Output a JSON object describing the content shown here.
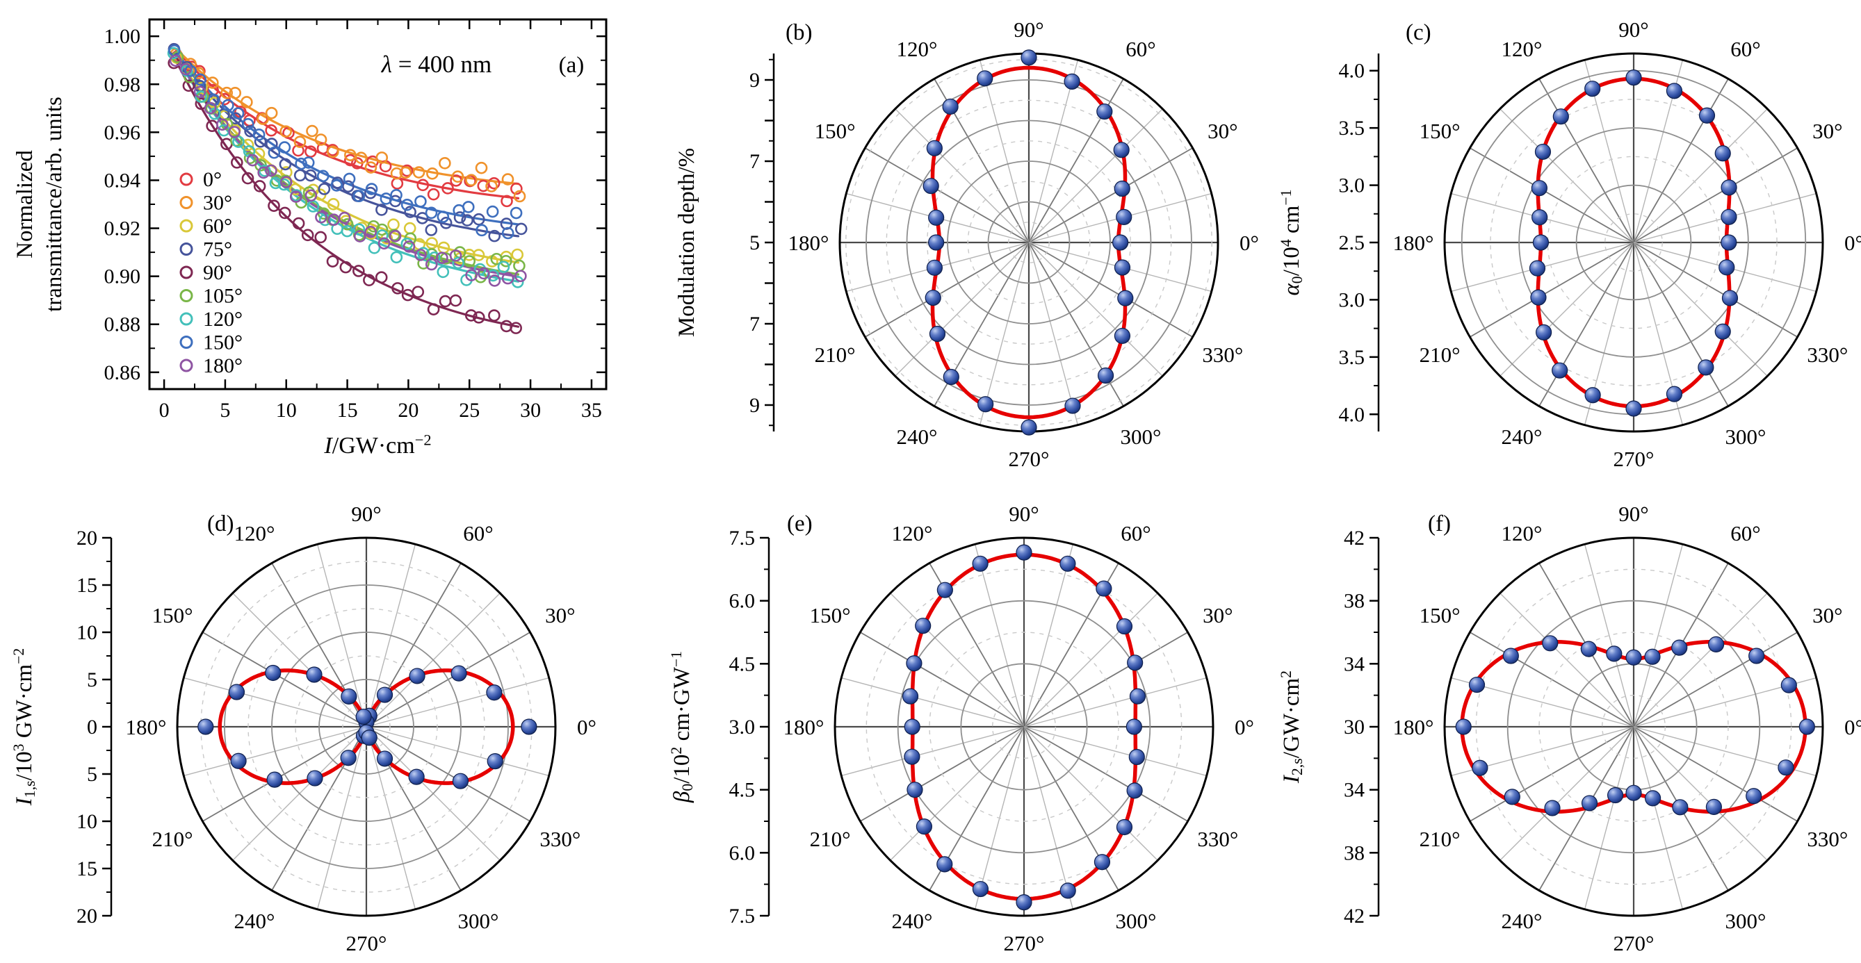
{
  "colors": {
    "fit_red": "#e60000",
    "point_blue": "#2c4ba0",
    "outer_circle": "#000000",
    "ring_major": "#8f8f8f",
    "ring_minor": "#c9c9c9",
    "spoke_cross": "#4a4a4a",
    "spoke_major": "#787878",
    "spoke_minor": "#b5b5b5",
    "axis_black": "#000000"
  },
  "common": {
    "angle_labels": [
      "0°",
      "30°",
      "60°",
      "90°",
      "120°",
      "150°",
      "180°",
      "210°",
      "240°",
      "270°",
      "300°",
      "330°"
    ],
    "spoke_step_deg": 15
  },
  "chart_data": [
    {
      "type": "line+scatter",
      "id": "a",
      "letter": "(a)",
      "annotation": [
        {
          "t": "λ",
          "i": true
        },
        {
          "t": " = 400 nm"
        }
      ],
      "xlabel": [
        {
          "t": "I",
          "i": true
        },
        {
          "t": "/GW·cm"
        },
        {
          "t": "−2",
          "v": "sup"
        }
      ],
      "ylabel_lines": [
        "Normalized",
        "transmittance/arb. units"
      ],
      "xlim": [
        -1.2,
        36.2
      ],
      "ylim": [
        0.853,
        1.007
      ],
      "xticks": [
        0,
        5,
        10,
        15,
        20,
        25,
        30,
        35
      ],
      "xticks_minor": [
        2.5,
        7.5,
        12.5,
        17.5,
        22.5,
        27.5,
        32.5
      ],
      "yticks": [
        0.86,
        0.88,
        0.9,
        0.92,
        0.94,
        0.96,
        0.98,
        1.0
      ],
      "yticks_minor": [
        0.87,
        0.89,
        0.91,
        0.93,
        0.95,
        0.97,
        0.99
      ],
      "x_samples": [
        1,
        3,
        5,
        7,
        9,
        11,
        13,
        15,
        17,
        19,
        21,
        23,
        25,
        27,
        29
      ],
      "series": [
        {
          "label": "0°",
          "color": "#e23b41",
          "values": [
            0.9941,
            0.9836,
            0.9747,
            0.9673,
            0.9609,
            0.9555,
            0.951,
            0.9471,
            0.9439,
            0.9411,
            0.9388,
            0.9368,
            0.9351,
            0.9337,
            0.9325
          ]
        },
        {
          "label": "30°",
          "color": "#f0922b",
          "values": [
            0.9946,
            0.9851,
            0.977,
            0.9702,
            0.9644,
            0.9595,
            0.9553,
            0.9518,
            0.9489,
            0.9463,
            0.9442,
            0.9424,
            0.9409,
            0.9396,
            0.9385
          ]
        },
        {
          "label": "60°",
          "color": "#d9c839",
          "values": [
            0.9917,
            0.9771,
            0.9647,
            0.9543,
            0.9454,
            0.9379,
            0.9315,
            0.9262,
            0.9216,
            0.9177,
            0.9145,
            0.9117,
            0.9094,
            0.9074,
            0.9057
          ]
        },
        {
          "label": "75°",
          "color": "#46549b",
          "values": [
            0.9927,
            0.9798,
            0.9688,
            0.9596,
            0.9517,
            0.9451,
            0.9395,
            0.9347,
            0.9307,
            0.9273,
            0.9244,
            0.9219,
            0.9199,
            0.9181,
            0.9167
          ]
        },
        {
          "label": "90°",
          "color": "#7e2752",
          "values": [
            0.9894,
            0.9706,
            0.9547,
            0.9413,
            0.9299,
            0.9202,
            0.9121,
            0.9052,
            0.8993,
            0.8944,
            0.8902,
            0.8866,
            0.8836,
            0.8811,
            0.879
          ]
        },
        {
          "label": "105°",
          "color": "#7ab648",
          "values": [
            0.9913,
            0.9759,
            0.9629,
            0.9519,
            0.9425,
            0.9347,
            0.928,
            0.9223,
            0.9175,
            0.9134,
            0.91,
            0.9071,
            0.9047,
            0.9026,
            0.9008
          ]
        },
        {
          "label": "120°",
          "color": "#43c0ba",
          "values": [
            0.991,
            0.9752,
            0.9618,
            0.9504,
            0.9408,
            0.9327,
            0.9258,
            0.9199,
            0.915,
            0.9108,
            0.9073,
            0.9043,
            0.9018,
            0.8996,
            0.8978
          ]
        },
        {
          "label": "150°",
          "color": "#3e6fbe",
          "values": [
            0.9931,
            0.981,
            0.9707,
            0.962,
            0.9546,
            0.9483,
            0.943,
            0.9386,
            0.9348,
            0.9316,
            0.9289,
            0.9266,
            0.9246,
            0.923,
            0.9216
          ]
        },
        {
          "label": "180°",
          "color": "#8f55a3",
          "values": [
            0.9912,
            0.9757,
            0.9625,
            0.9514,
            0.942,
            0.934,
            0.9272,
            0.9215,
            0.9167,
            0.9126,
            0.9091,
            0.9062,
            0.9037,
            0.9016,
            0.8998
          ]
        }
      ]
    },
    {
      "type": "polar-line",
      "id": "b",
      "letter": "(b)",
      "ylabel": [
        {
          "t": "Modulation depth/%"
        }
      ],
      "rmin": 5,
      "rmax": 9.65,
      "rings_major": [
        6,
        7,
        8,
        9
      ],
      "rings_minor": [
        5.5,
        6.5,
        7.5,
        8.5,
        9.5
      ],
      "axis_major": [
        5,
        6,
        7,
        8,
        9
      ],
      "axis_minor": [
        5.5,
        6.5,
        7.5,
        8.5,
        9.5
      ],
      "axis_labels": [
        5,
        7,
        9
      ],
      "dec": 0,
      "fit": {
        "fn": "sin2",
        "base": 7.2,
        "amp": 2.1
      },
      "points": [
        [
          0,
          7.25
        ],
        [
          15,
          7.42
        ],
        [
          30,
          7.65
        ],
        [
          45,
          8.22
        ],
        [
          60,
          8.72
        ],
        [
          75,
          9.1
        ],
        [
          90,
          9.55
        ],
        [
          105,
          9.18
        ],
        [
          120,
          8.86
        ],
        [
          135,
          8.28
        ],
        [
          150,
          7.78
        ],
        [
          165,
          7.36
        ],
        [
          180,
          7.28
        ],
        [
          195,
          7.4
        ],
        [
          210,
          7.72
        ],
        [
          225,
          8.18
        ],
        [
          240,
          8.82
        ],
        [
          255,
          9.12
        ],
        [
          270,
          9.55
        ],
        [
          285,
          9.16
        ],
        [
          300,
          8.78
        ],
        [
          315,
          8.25
        ],
        [
          330,
          7.74
        ],
        [
          345,
          7.38
        ]
      ]
    },
    {
      "type": "polar-line",
      "id": "c",
      "letter": "(c)",
      "ylabel": [
        {
          "t": "α",
          "i": true
        },
        {
          "t": "0",
          "v": "sub"
        },
        {
          "t": "/10"
        },
        {
          "t": "4",
          "v": "sup"
        },
        {
          "t": " cm"
        },
        {
          "t": "−1",
          "v": "sup"
        }
      ],
      "rmin": 2.5,
      "rmax": 4.15,
      "rings_major": [
        3.0,
        3.5,
        4.0
      ],
      "rings_minor": [
        2.75,
        3.25,
        3.75
      ],
      "axis_major": [
        2.5,
        3.0,
        3.5,
        4.0
      ],
      "axis_minor": [
        2.75,
        3.25,
        3.75
      ],
      "axis_labels": [
        2.5,
        3.0,
        3.5,
        4.0
      ],
      "dec": 1,
      "fit": {
        "fn": "sin2",
        "base": 3.31,
        "amp": 0.62
      },
      "points": [
        [
          0,
          3.33
        ],
        [
          15,
          3.36
        ],
        [
          30,
          3.46
        ],
        [
          45,
          3.6
        ],
        [
          60,
          3.78
        ],
        [
          75,
          3.87
        ],
        [
          90,
          3.94
        ],
        [
          105,
          3.89
        ],
        [
          120,
          3.77
        ],
        [
          135,
          3.62
        ],
        [
          150,
          3.45
        ],
        [
          165,
          3.35
        ],
        [
          180,
          3.31
        ],
        [
          195,
          3.37
        ],
        [
          210,
          3.46
        ],
        [
          225,
          3.61
        ],
        [
          240,
          3.79
        ],
        [
          255,
          3.88
        ],
        [
          270,
          3.95
        ],
        [
          285,
          3.87
        ],
        [
          300,
          3.76
        ],
        [
          315,
          3.6
        ],
        [
          330,
          3.47
        ],
        [
          345,
          3.34
        ]
      ]
    },
    {
      "type": "polar-line",
      "id": "d",
      "letter": "(d)",
      "ylabel": [
        {
          "t": "I",
          "i": true
        },
        {
          "t": "1,s",
          "v": "sub"
        },
        {
          "t": "/10"
        },
        {
          "t": "3",
          "v": "sup"
        },
        {
          "t": " GW·cm"
        },
        {
          "t": "−2",
          "v": "sup"
        }
      ],
      "rmin": 0,
      "rmax": 20,
      "rings_major": [
        5,
        10,
        15
      ],
      "rings_minor": [
        2.5,
        7.5,
        12.5,
        17.5
      ],
      "axis_major": [
        0,
        5,
        10,
        15,
        20
      ],
      "axis_minor": [
        2.5,
        7.5,
        12.5,
        17.5
      ],
      "axis_labels": [
        0,
        5,
        10,
        15,
        20
      ],
      "dec": 0,
      "fit": {
        "fn": "cos2",
        "base": 0,
        "amp": 15.5
      },
      "points": [
        [
          0,
          17.2
        ],
        [
          15,
          14.0
        ],
        [
          30,
          11.3
        ],
        [
          45,
          7.6
        ],
        [
          60,
          3.9
        ],
        [
          75,
          1.2
        ],
        [
          90,
          0.5
        ],
        [
          105,
          1.1
        ],
        [
          120,
          3.7
        ],
        [
          135,
          7.8
        ],
        [
          150,
          11.4
        ],
        [
          165,
          14.2
        ],
        [
          180,
          17.0
        ],
        [
          195,
          14.0
        ],
        [
          210,
          11.2
        ],
        [
          225,
          7.7
        ],
        [
          240,
          3.8
        ],
        [
          255,
          1.0
        ],
        [
          270,
          0.6
        ],
        [
          285,
          1.2
        ],
        [
          300,
          3.9
        ],
        [
          315,
          7.5
        ],
        [
          330,
          11.5
        ],
        [
          345,
          14.1
        ]
      ]
    },
    {
      "type": "polar-line",
      "id": "e",
      "letter": "(e)",
      "ylabel": [
        {
          "t": "β",
          "i": true
        },
        {
          "t": "0",
          "v": "sub"
        },
        {
          "t": "/10"
        },
        {
          "t": "2",
          "v": "sup"
        },
        {
          "t": " cm·GW"
        },
        {
          "t": "−1",
          "v": "sup"
        }
      ],
      "rmin": 3.0,
      "rmax": 7.5,
      "rings_major": [
        4.5,
        6.0
      ],
      "rings_minor": [
        3.75,
        5.25,
        6.75
      ],
      "axis_major": [
        3.0,
        4.5,
        6.0,
        7.5
      ],
      "axis_minor": [
        3.75,
        5.25,
        6.75
      ],
      "axis_labels": [
        3.0,
        4.5,
        6.0,
        7.5
      ],
      "dec": 1,
      "fit": {
        "fn": "sin2",
        "base": 5.65,
        "amp": 1.45
      },
      "points": [
        [
          0,
          5.62
        ],
        [
          15,
          5.8
        ],
        [
          30,
          6.05
        ],
        [
          45,
          6.38
        ],
        [
          60,
          6.8
        ],
        [
          75,
          7.02
        ],
        [
          90,
          7.15
        ],
        [
          105,
          7.02
        ],
        [
          120,
          6.76
        ],
        [
          135,
          6.4
        ],
        [
          150,
          6.02
        ],
        [
          165,
          5.8
        ],
        [
          180,
          5.66
        ],
        [
          195,
          5.76
        ],
        [
          210,
          6.0
        ],
        [
          225,
          6.36
        ],
        [
          240,
          6.78
        ],
        [
          255,
          7.0
        ],
        [
          270,
          7.18
        ],
        [
          285,
          7.04
        ],
        [
          300,
          6.72
        ],
        [
          315,
          6.38
        ],
        [
          330,
          6.04
        ],
        [
          345,
          5.78
        ]
      ]
    },
    {
      "type": "polar-line",
      "id": "f",
      "letter": "(f)",
      "ylabel": [
        {
          "t": "I",
          "i": true
        },
        {
          "t": "2,s",
          "v": "sub"
        },
        {
          "t": "/GW·cm"
        },
        {
          "t": "2",
          "v": "sup"
        }
      ],
      "rmin": 30,
      "rmax": 42,
      "rings_major": [
        34,
        38
      ],
      "rings_minor": [
        32,
        36,
        40
      ],
      "axis_major": [
        30,
        34,
        38,
        42
      ],
      "axis_minor": [
        32,
        36,
        40
      ],
      "axis_labels": [
        30,
        34,
        38,
        42
      ],
      "dec": 0,
      "fit": {
        "fn": "cos2",
        "base": 34.3,
        "amp": 6.6
      },
      "points": [
        [
          0,
          41.0
        ],
        [
          15,
          40.2
        ],
        [
          30,
          39.0
        ],
        [
          45,
          37.4
        ],
        [
          60,
          35.8
        ],
        [
          75,
          34.6
        ],
        [
          90,
          34.4
        ],
        [
          105,
          34.8
        ],
        [
          120,
          35.7
        ],
        [
          135,
          37.5
        ],
        [
          150,
          39.0
        ],
        [
          165,
          40.3
        ],
        [
          180,
          40.8
        ],
        [
          195,
          40.1
        ],
        [
          210,
          38.9
        ],
        [
          225,
          37.3
        ],
        [
          240,
          35.6
        ],
        [
          255,
          34.5
        ],
        [
          270,
          34.2
        ],
        [
          285,
          34.7
        ],
        [
          300,
          35.9
        ],
        [
          315,
          37.2
        ],
        [
          330,
          38.8
        ],
        [
          345,
          40.0
        ]
      ]
    }
  ]
}
